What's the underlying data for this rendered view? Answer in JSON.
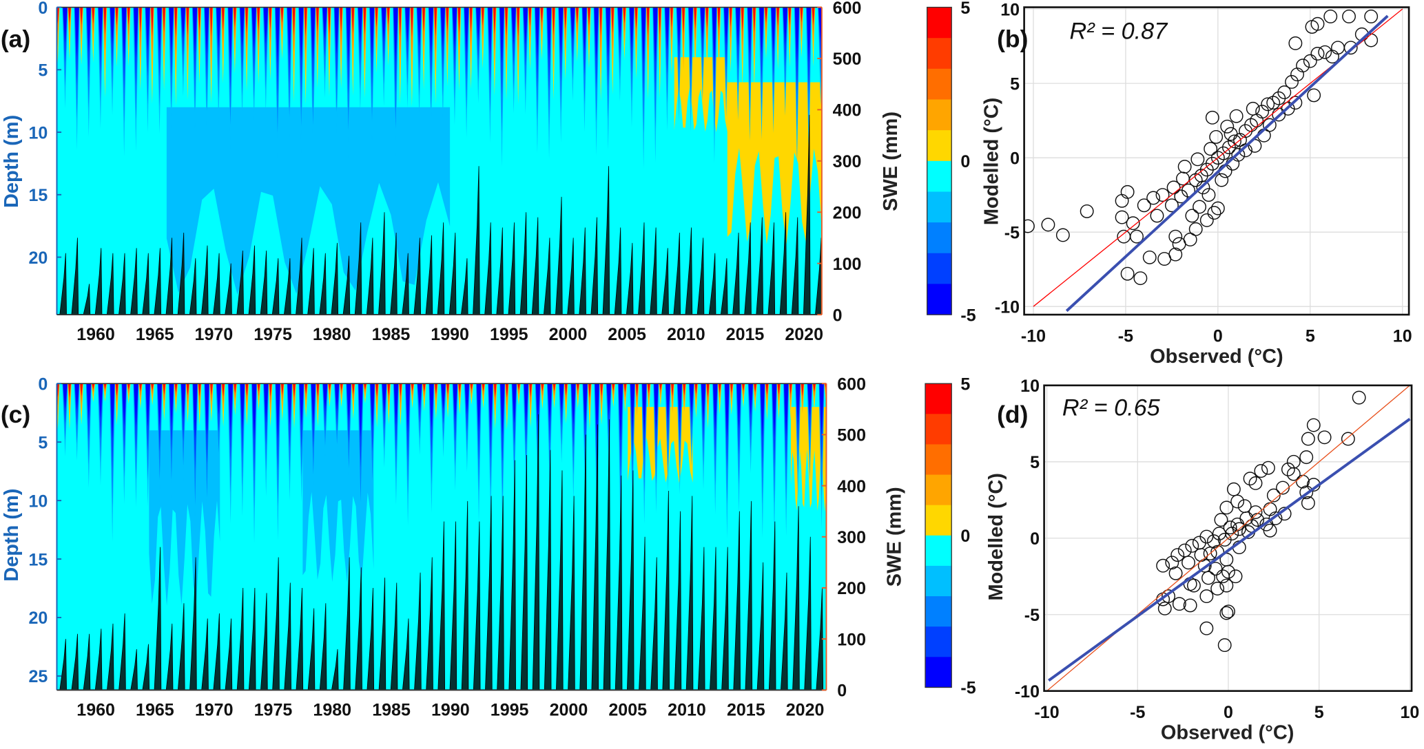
{
  "chart_data": [
    {
      "id": "a",
      "type": "heatmap",
      "panel_label": "(a)",
      "description_axis": {
        "ylabel": "Depth (m)",
        "y2label": "SWE (mm)"
      },
      "xlim": [
        1956.7,
        2021.5
      ],
      "ylim_depth_m": [
        0,
        24.6
      ],
      "ylim_swe_mm": [
        0,
        600
      ],
      "x_ticks": [
        "1960",
        "1965",
        "1970",
        "1975",
        "1980",
        "1985",
        "1990",
        "1995",
        "2000",
        "2005",
        "2010",
        "2015",
        "2020"
      ],
      "depth_ticks": [
        "0",
        "5",
        "10",
        "15",
        "20"
      ],
      "swe_ticks": [
        "0",
        "100",
        "200",
        "300",
        "400",
        "500",
        "600"
      ],
      "colorbar": {
        "levels": [
          -5,
          -4,
          -3,
          -2,
          -1,
          0,
          1,
          2,
          3,
          4,
          5
        ],
        "tick_labels": [
          "5",
          "0",
          "-5"
        ],
        "colors_top_to_bottom": [
          "#FF0000",
          "#FF3C00",
          "#FF6E00",
          "#FFA500",
          "#FFD700",
          "#00FFFF",
          "#00BFFF",
          "#0080FF",
          "#0040FF",
          "#0000FF"
        ]
      },
      "cold_penetration_m": [
        7,
        13
      ],
      "warm_penetration_m": [
        4,
        8
      ],
      "regions": [
        {
          "color": "#00BFFF",
          "from": 1966,
          "to": 1990,
          "top_m": 8,
          "bottom_m": 23
        },
        {
          "color": "#FFD700",
          "from": 2013.5,
          "to": 2021.5,
          "top_m": 6,
          "bottom_m": 19
        },
        {
          "color": "#FFD700",
          "from": 2009,
          "to": 2013.5,
          "top_m": 4,
          "bottom_m": 10
        }
      ],
      "swe_years_start": 1957,
      "swe_peak_mm": [
        120,
        150,
        60,
        130,
        120,
        120,
        130,
        120,
        130,
        150,
        160,
        110,
        135,
        120,
        100,
        125,
        135,
        125,
        110,
        110,
        150,
        130,
        120,
        140,
        115,
        180,
        150,
        200,
        160,
        120,
        150,
        155,
        180,
        160,
        110,
        290,
        180,
        170,
        180,
        200,
        190,
        150,
        230,
        150,
        170,
        190,
        290,
        170,
        140,
        180,
        170,
        130,
        160,
        170,
        150,
        120,
        110,
        160,
        180,
        190,
        180,
        200,
        190,
        390,
        150
      ]
    },
    {
      "id": "b",
      "type": "scatter",
      "panel_label": "(b)",
      "annotation": "R² = 0.87",
      "xlabel": "Observed (°C)",
      "ylabel": "Modelled (°C)",
      "xlim": [
        -10.5,
        10.35
      ],
      "ylim": [
        -10.55,
        10.12
      ],
      "x_ticks": [
        "-10",
        "-5",
        "0",
        "5",
        "10"
      ],
      "y_ticks": [
        "10",
        "5",
        "0",
        "-5",
        "-10"
      ],
      "grid": true,
      "one_to_one_color": "#FF0000",
      "fit": {
        "slope": 1.14,
        "intercept": -0.95,
        "x_range": [
          -8.2,
          9.2
        ],
        "color": "#3A4FB0"
      },
      "points": [
        [
          -10.3,
          -4.6
        ],
        [
          -9.2,
          -4.5
        ],
        [
          -8.4,
          -5.2
        ],
        [
          -7.1,
          -3.6
        ],
        [
          -5.2,
          -2.9
        ],
        [
          -5.2,
          -4
        ],
        [
          -5.1,
          -5.3
        ],
        [
          -4.9,
          -2.3
        ],
        [
          -4.6,
          -4.4
        ],
        [
          -4.4,
          -5.3
        ],
        [
          -4.9,
          -7.8
        ],
        [
          -4.2,
          -8.1
        ],
        [
          -3.7,
          -6.7
        ],
        [
          -2.9,
          -6.8
        ],
        [
          -2.3,
          -6.5
        ],
        [
          -2.3,
          -5.3
        ],
        [
          -2.1,
          -5.8
        ],
        [
          -1.5,
          -5.5
        ],
        [
          -1.2,
          -4.8
        ],
        [
          -0.2,
          -3.7
        ],
        [
          -0.6,
          -4.2
        ],
        [
          -4,
          -3.2
        ],
        [
          -3.5,
          -2.7
        ],
        [
          -3,
          -2.5
        ],
        [
          -2.5,
          -3.2
        ],
        [
          -2,
          -2.6
        ],
        [
          -1.6,
          -2.2
        ],
        [
          -1.2,
          -1.5
        ],
        [
          -0.9,
          -1.2
        ],
        [
          -0.6,
          -0.8
        ],
        [
          -0.3,
          -0.4
        ],
        [
          0,
          0
        ],
        [
          0.3,
          0.3
        ],
        [
          0.6,
          0.7
        ],
        [
          0.9,
          1.1
        ],
        [
          1.2,
          1.2
        ],
        [
          1.5,
          1.8
        ],
        [
          1.8,
          2.2
        ],
        [
          2.1,
          2.5
        ],
        [
          2.4,
          3.1
        ],
        [
          2.7,
          3.6
        ],
        [
          3,
          3.7
        ],
        [
          3.3,
          4.0
        ],
        [
          3.6,
          4.4
        ],
        [
          4,
          5.1
        ],
        [
          4.3,
          5.6
        ],
        [
          4.6,
          6.2
        ],
        [
          5,
          6.5
        ],
        [
          5.4,
          7
        ],
        [
          5.8,
          7.1
        ],
        [
          6.2,
          6.8
        ],
        [
          6.5,
          7.4
        ],
        [
          7.2,
          7.4
        ],
        [
          7.8,
          8.3
        ],
        [
          8.3,
          7.9
        ],
        [
          8.3,
          9.5
        ],
        [
          7.1,
          9.5
        ],
        [
          6.1,
          9.5
        ],
        [
          5.4,
          9
        ],
        [
          5.1,
          8.8
        ],
        [
          4.2,
          7.7
        ],
        [
          -1.8,
          -0.6
        ],
        [
          -0.3,
          2.7
        ],
        [
          0.5,
          2.1
        ],
        [
          1,
          2.8
        ],
        [
          -1,
          -3.3
        ],
        [
          0,
          -3.4
        ],
        [
          4.2,
          3.7
        ],
        [
          5.2,
          4.2
        ],
        [
          3.3,
          2.9
        ],
        [
          2,
          0.8
        ],
        [
          2.5,
          1.5
        ],
        [
          -0.5,
          -2.5
        ],
        [
          -1.4,
          -3.9
        ],
        [
          1.5,
          0.5
        ],
        [
          -2.4,
          -2
        ],
        [
          -3.3,
          -3.9
        ],
        [
          0.8,
          -0.4
        ],
        [
          0.2,
          -1.5
        ],
        [
          -0.1,
          1.4
        ],
        [
          -0.8,
          -2
        ],
        [
          -1.9,
          -1.4
        ],
        [
          0.4,
          -0.9
        ],
        [
          1.1,
          0.2
        ],
        [
          2.8,
          2.2
        ],
        [
          3.8,
          3.3
        ],
        [
          -0.4,
          0.6
        ],
        [
          -1.1,
          -0.1
        ],
        [
          0.7,
          1.6
        ],
        [
          1.9,
          3.3
        ]
      ]
    },
    {
      "id": "c",
      "type": "heatmap",
      "panel_label": "(c)",
      "description_axis": {
        "ylabel": "Depth (m)",
        "y2label": "SWE (mm)"
      },
      "xlim": [
        1956.7,
        2021.8
      ],
      "ylim_depth_m": [
        0,
        26.2
      ],
      "ylim_swe_mm": [
        0,
        600
      ],
      "x_ticks": [
        "1960",
        "1965",
        "1970",
        "1975",
        "1980",
        "1985",
        "1990",
        "1995",
        "2000",
        "2005",
        "2010",
        "2015",
        "2020"
      ],
      "depth_ticks": [
        "0",
        "5",
        "10",
        "15",
        "20",
        "25"
      ],
      "swe_ticks": [
        "0",
        "100",
        "200",
        "300",
        "400",
        "500",
        "600"
      ],
      "colorbar": {
        "levels": [
          -5,
          -4,
          -3,
          -2,
          -1,
          0,
          1,
          2,
          3,
          4,
          5
        ],
        "tick_labels": [
          "5",
          "0",
          "-5"
        ],
        "colors_top_to_bottom": [
          "#FF0000",
          "#FF3C00",
          "#FF6E00",
          "#FFA500",
          "#FFD700",
          "#00FFFF",
          "#00BFFF",
          "#0080FF",
          "#0040FF",
          "#0000FF"
        ]
      },
      "cold_penetration_m": [
        6,
        14
      ],
      "warm_penetration_m": [
        1.5,
        4
      ],
      "regions": [
        {
          "color": "#00BFFF",
          "from": 1964.5,
          "to": 1970.5,
          "top_m": 4,
          "bottom_m": 19
        },
        {
          "color": "#00BFFF",
          "from": 1977.5,
          "to": 1983.5,
          "top_m": 4,
          "bottom_m": 17
        },
        {
          "color": "#FFD700",
          "from": 2005,
          "to": 2010.5,
          "top_m": 2,
          "bottom_m": 8.5
        },
        {
          "color": "#FFD700",
          "from": 2018.8,
          "to": 2021.8,
          "top_m": 2,
          "bottom_m": 11
        }
      ],
      "swe_years_start": 1957,
      "swe_peak_mm": [
        100,
        110,
        110,
        120,
        130,
        150,
        80,
        90,
        280,
        130,
        170,
        260,
        140,
        150,
        140,
        200,
        200,
        190,
        260,
        210,
        200,
        160,
        170,
        80,
        260,
        240,
        200,
        220,
        210,
        140,
        230,
        260,
        330,
        330,
        370,
        330,
        380,
        380,
        450,
        460,
        540,
        470,
        430,
        380,
        500,
        520,
        530,
        420,
        430,
        300,
        260,
        390,
        350,
        380,
        280,
        280,
        280,
        350,
        370,
        250,
        330,
        230,
        360,
        300,
        200
      ]
    },
    {
      "id": "d",
      "type": "scatter",
      "panel_label": "(d)",
      "annotation": "R² = 0.65",
      "xlabel": "Observed (°C)",
      "ylabel": "Modelled (°C)",
      "xlim": [
        -10.15,
        10.1
      ],
      "ylim": [
        -10,
        10
      ],
      "x_ticks": [
        "-10",
        "-5",
        "0",
        "5",
        "10"
      ],
      "y_ticks": [
        "10",
        "5",
        "0",
        "-5",
        "-10"
      ],
      "grid": true,
      "one_to_one_color": "#E8501C",
      "fit": {
        "slope": 0.86,
        "intercept": -0.8,
        "x_range": [
          -9.9,
          10
        ],
        "color": "#3A4FB0"
      },
      "points": [
        [
          7.2,
          9.2
        ],
        [
          4.7,
          7.4
        ],
        [
          4.4,
          6.5
        ],
        [
          5.3,
          6.6
        ],
        [
          6.6,
          6.5
        ],
        [
          4.3,
          5.3
        ],
        [
          3.6,
          5
        ],
        [
          3.3,
          4.5
        ],
        [
          3.6,
          4.2
        ],
        [
          2.2,
          4.6
        ],
        [
          1.8,
          4.4
        ],
        [
          1.2,
          3.9
        ],
        [
          1.5,
          3.6
        ],
        [
          0.3,
          3.2
        ],
        [
          0.5,
          2.4
        ],
        [
          -0.1,
          2
        ],
        [
          4.1,
          3.7
        ],
        [
          4.7,
          3.5
        ],
        [
          4.4,
          2.3
        ],
        [
          4.3,
          3
        ],
        [
          3,
          3.3
        ],
        [
          2.5,
          2.8
        ],
        [
          3.1,
          1.6
        ],
        [
          2.3,
          1.9
        ],
        [
          2.1,
          0.9
        ],
        [
          2.3,
          0.5
        ],
        [
          1.5,
          1.7
        ],
        [
          1,
          1.3
        ],
        [
          0.6,
          0.6
        ],
        [
          0.2,
          0.3
        ],
        [
          -0.2,
          -0.1
        ],
        [
          -0.5,
          0.3
        ],
        [
          -0.8,
          -0.2
        ],
        [
          -1.2,
          0.1
        ],
        [
          -1.6,
          -0.3
        ],
        [
          -2,
          -0.5
        ],
        [
          -2.4,
          -0.8
        ],
        [
          -2.8,
          -1.1
        ],
        [
          -3.1,
          -1.6
        ],
        [
          -2.9,
          -2.3
        ],
        [
          -3.6,
          -1.8
        ],
        [
          -2.2,
          -1.6
        ],
        [
          -1.3,
          -1.8
        ],
        [
          -0.7,
          -2
        ],
        [
          -0.3,
          -2.5
        ],
        [
          0,
          -2.2
        ],
        [
          0.4,
          -2.5
        ],
        [
          -0.1,
          -3.1
        ],
        [
          -0.6,
          -3.3
        ],
        [
          -1.1,
          -2.6
        ],
        [
          -1.9,
          -3.1
        ],
        [
          -2.1,
          -3
        ],
        [
          -1.2,
          -3.8
        ],
        [
          -3.3,
          -3.8
        ],
        [
          -3.6,
          -4.0
        ],
        [
          -3.5,
          -4.6
        ],
        [
          -2.7,
          -4.3
        ],
        [
          -2.1,
          -4.4
        ],
        [
          -0.1,
          -4.9
        ],
        [
          0,
          -4.8
        ],
        [
          -1.2,
          -5.9
        ],
        [
          -0.2,
          -7
        ],
        [
          0.5,
          0.9
        ],
        [
          1.1,
          0.4
        ],
        [
          1.6,
          1.2
        ],
        [
          -0.4,
          1.2
        ],
        [
          0.9,
          2.1
        ],
        [
          -1,
          -1
        ],
        [
          -0.1,
          -1.4
        ],
        [
          0.6,
          -0.6
        ],
        [
          1.3,
          0.8
        ],
        [
          -0.6,
          -0.9
        ],
        [
          0.1,
          0.7
        ],
        [
          -1.5,
          -1.1
        ],
        [
          2.6,
          1.3
        ]
      ]
    }
  ]
}
